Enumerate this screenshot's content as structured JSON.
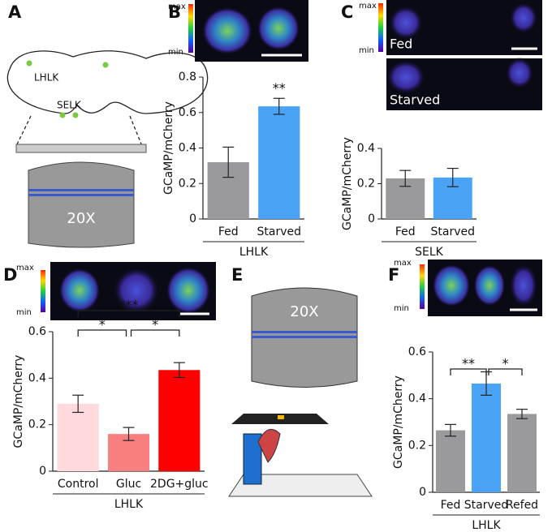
{
  "panel_labels": [
    "A",
    "B",
    "C",
    "D",
    "E",
    "F"
  ],
  "colorbar": {
    "max": "max",
    "min": "min"
  },
  "diagram_a": {
    "labels": [
      "LHLK",
      "SELK"
    ],
    "objective": "20X"
  },
  "diagram_e": {
    "objective": "20X"
  },
  "panel_c_images": [
    "Fed",
    "Starved"
  ],
  "chart_data": [
    {
      "type": "bar",
      "ylabel": "GCaMP/mCherry",
      "categories": [
        "Fed",
        "Starved"
      ],
      "values": [
        0.32,
        0.635
      ],
      "errors": [
        0.085,
        0.045
      ],
      "colors": [
        "#9a9a9c",
        "#4aa3f5"
      ],
      "ylim": [
        0,
        0.8
      ],
      "yticks": [
        0,
        0.2,
        0.4,
        0.6,
        0.8
      ],
      "group_label": "LHLK",
      "annotations": [
        {
          "label": "**",
          "from": 1,
          "to": 1
        }
      ]
    },
    {
      "type": "bar",
      "ylabel": "GCaMP/mCherry",
      "categories": [
        "Fed",
        "Starved"
      ],
      "values": [
        0.23,
        0.235
      ],
      "errors": [
        0.045,
        0.052
      ],
      "colors": [
        "#9a9a9c",
        "#4aa3f5"
      ],
      "ylim": [
        0,
        0.4
      ],
      "yticks": [
        0,
        0.2,
        0.4
      ],
      "group_label": "SELK",
      "annotations": []
    },
    {
      "type": "bar",
      "ylabel": "GCaMP/mCherry",
      "categories": [
        "Control",
        "Gluc",
        "2DG+gluc"
      ],
      "values": [
        0.29,
        0.16,
        0.435
      ],
      "errors": [
        0.037,
        0.028,
        0.032
      ],
      "colors": [
        "#ffd9dc",
        "#f77f80",
        "#ff0000"
      ],
      "ylim": [
        0,
        0.6
      ],
      "yticks": [
        0,
        0.2,
        0.4,
        0.6
      ],
      "group_label": "LHLK",
      "annotations": [
        {
          "label": "***",
          "from": 0,
          "to": 2
        },
        {
          "label": "*",
          "from": 0,
          "to": 1
        },
        {
          "label": "*",
          "from": 1,
          "to": 2
        }
      ]
    },
    {
      "type": "bar",
      "ylabel": "GCaMP/mCherry",
      "categories": [
        "Fed",
        "Starved",
        "Refed"
      ],
      "values": [
        0.265,
        0.465,
        0.335
      ],
      "errors": [
        0.025,
        0.05,
        0.02
      ],
      "colors": [
        "#9a9a9c",
        "#4aa3f5",
        "#9a9a9c"
      ],
      "ylim": [
        0,
        0.6
      ],
      "yticks": [
        0,
        0.2,
        0.4,
        0.6
      ],
      "group_label": "LHLK",
      "annotations": [
        {
          "label": "**",
          "from": 0,
          "to": 1
        },
        {
          "label": "*",
          "from": 1,
          "to": 2
        }
      ]
    }
  ]
}
